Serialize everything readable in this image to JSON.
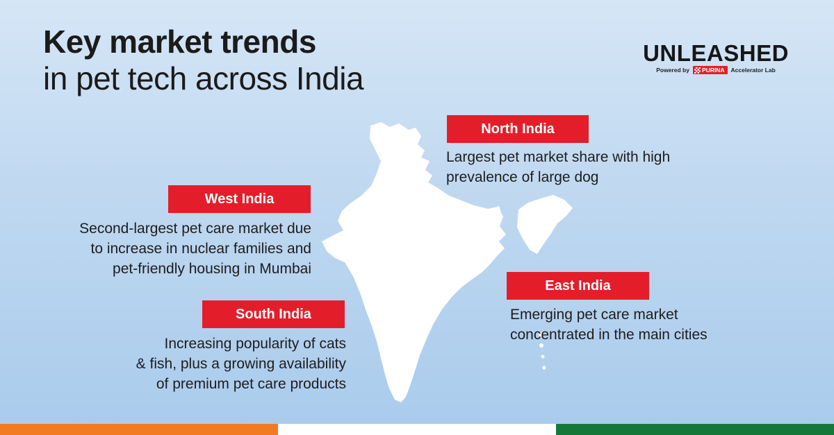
{
  "title": {
    "line1": "Key market trends",
    "line2": "in pet tech across India"
  },
  "logo": {
    "wordmark": "UNLEASHED",
    "powered_by": "Powered by",
    "brand": "PURINA",
    "suffix": "Accelerator Lab"
  },
  "regions": {
    "north": {
      "label": "North India",
      "lines": [
        "Largest pet market share with high",
        "prevalence of large dog"
      ]
    },
    "west": {
      "label": "West India",
      "lines": [
        "Second-largest pet care market due",
        "to increase in nuclear families and",
        "pet-friendly housing in Mumbai"
      ]
    },
    "east": {
      "label": "East India",
      "lines": [
        "Emerging pet care market",
        "concentrated in the main cities"
      ]
    },
    "south": {
      "label": "South India",
      "lines": [
        "Increasing popularity of cats",
        "& fish, plus a growing availability",
        "of premium pet care products"
      ]
    }
  },
  "colors": {
    "tag": "#e31e2a",
    "saffron": "#f47a22",
    "white": "#ffffff",
    "green": "#157838"
  }
}
